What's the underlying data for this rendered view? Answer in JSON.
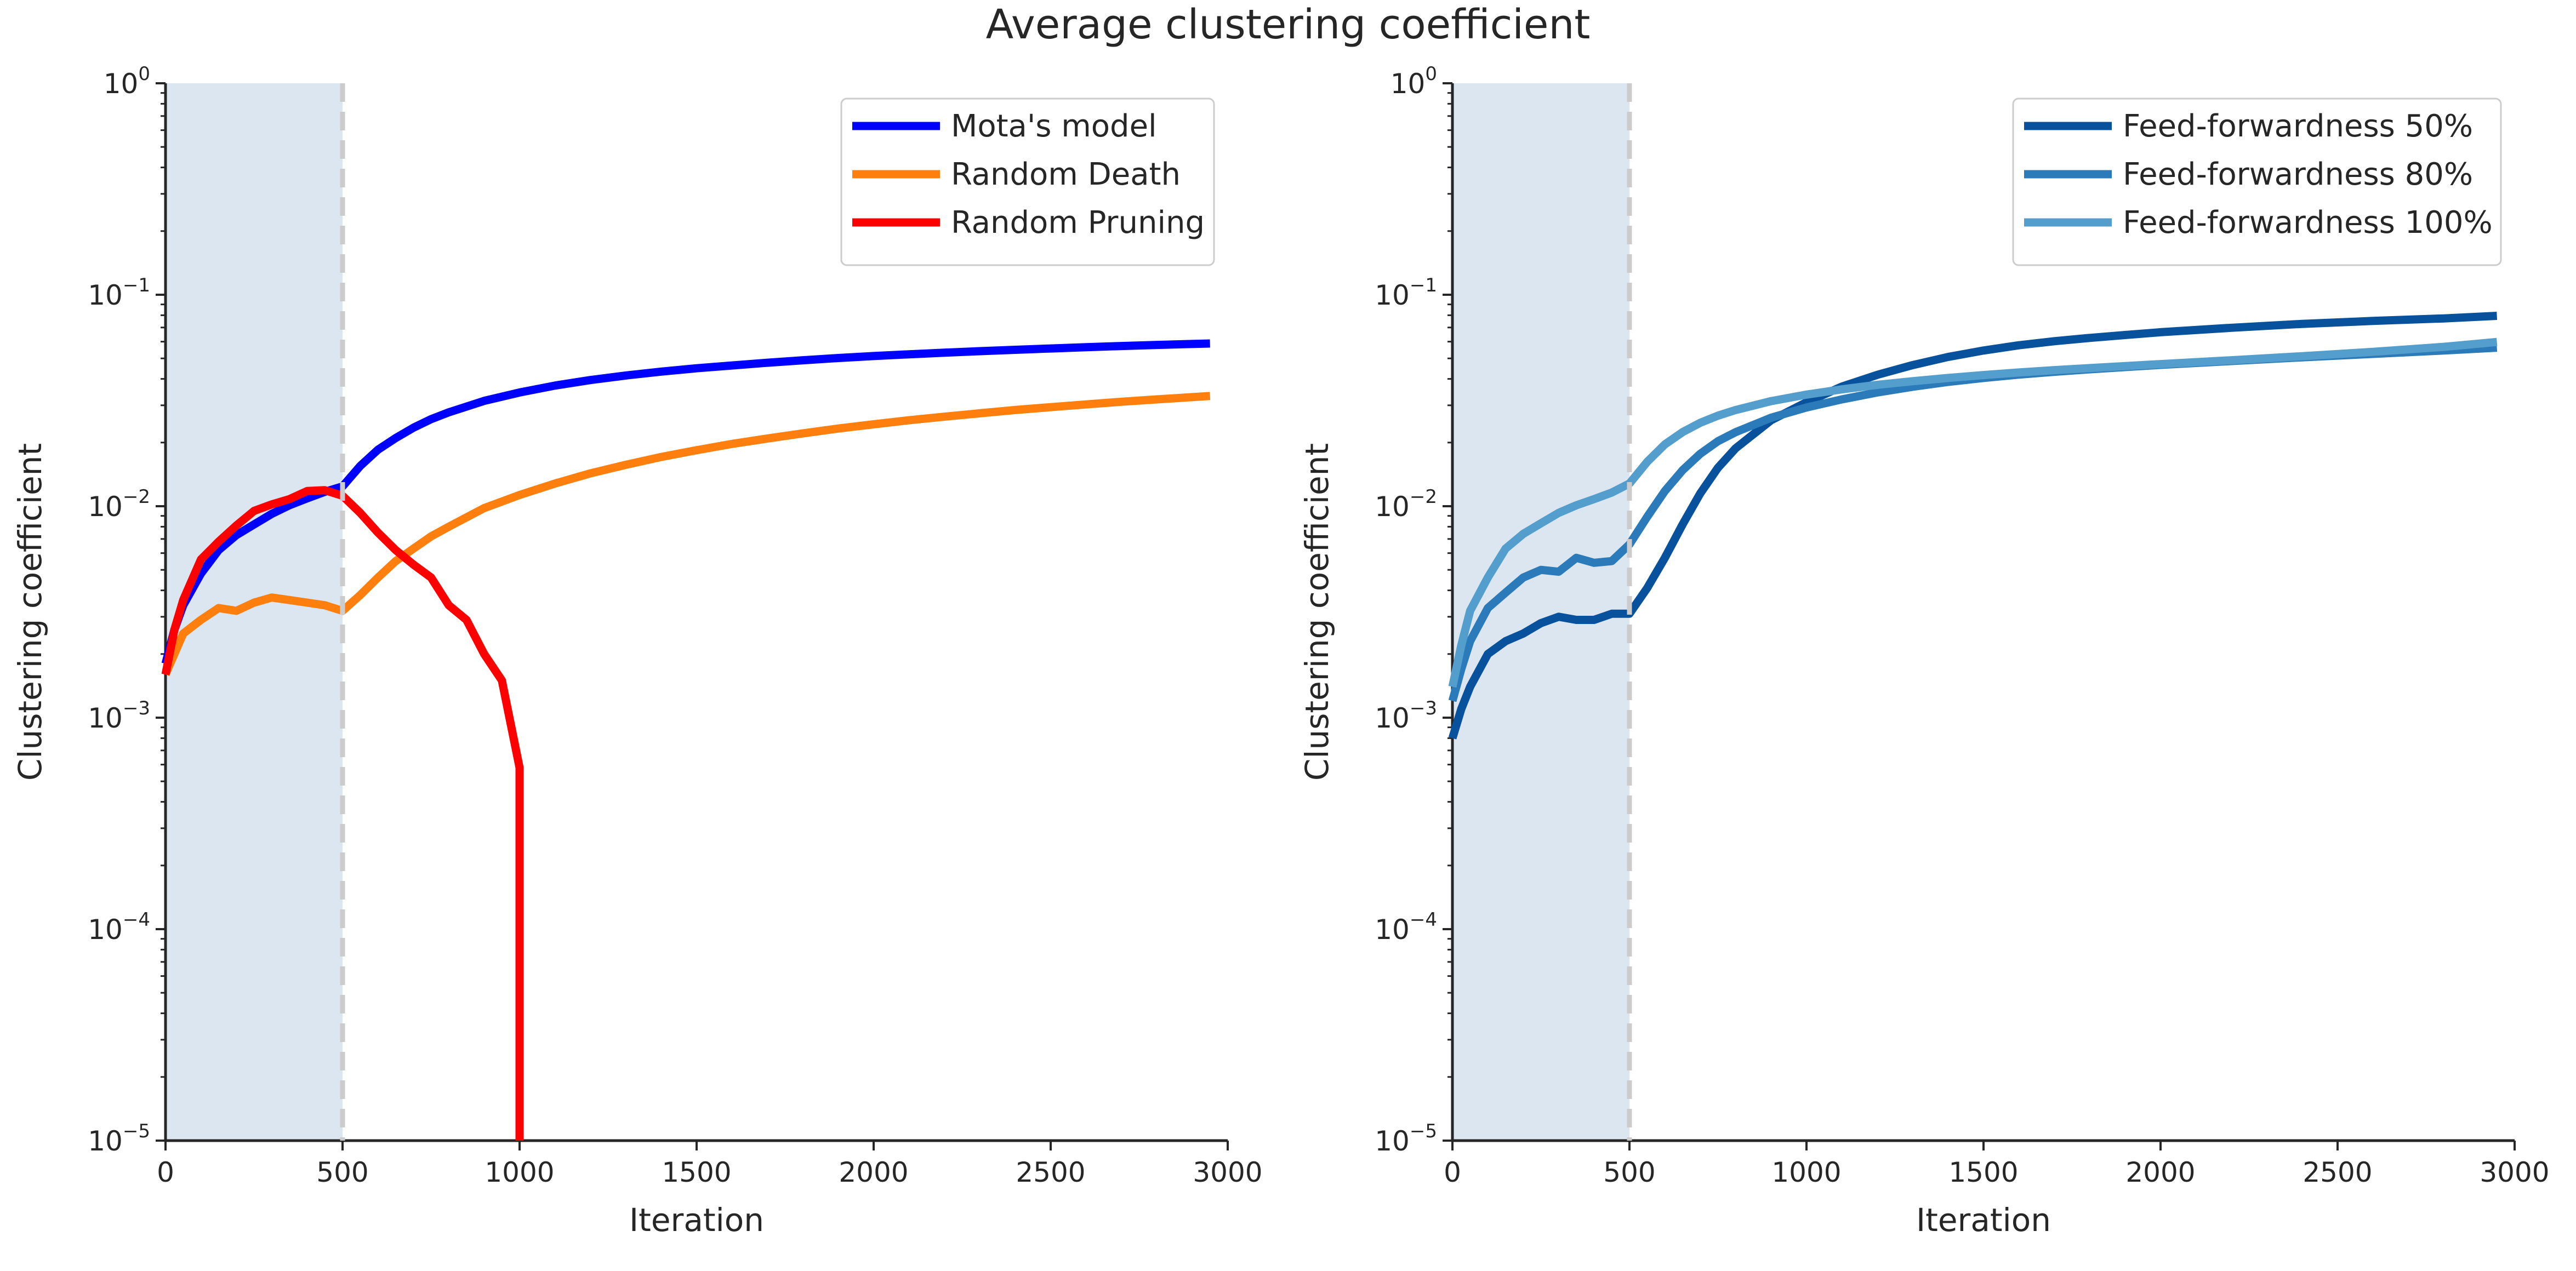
{
  "figure": {
    "title": "Average clustering coefficient"
  },
  "chart_data": [
    {
      "type": "line",
      "yscale": "log",
      "xlabel": "Iteration",
      "ylabel": "Clustering coefficient",
      "xlim": [
        0,
        3000
      ],
      "ylim": [
        1e-05,
        1
      ],
      "xticks": [
        "0",
        "500",
        "1000",
        "1500",
        "2000",
        "2500",
        "3000"
      ],
      "yticks": [
        {
          "base": "10",
          "exp": "0"
        },
        {
          "base": "10",
          "exp": "−1"
        },
        {
          "base": "10",
          "exp": "−2"
        },
        {
          "base": "10",
          "exp": "−3"
        },
        {
          "base": "10",
          "exp": "−4"
        },
        {
          "base": "10",
          "exp": "−5"
        }
      ],
      "shaded_region": {
        "x": [
          0,
          500
        ],
        "color": "#dce6f0"
      },
      "vline": {
        "x": 500,
        "color": "#cccccc",
        "style": "dashed"
      },
      "legend_position": "top-right",
      "series": [
        {
          "name": "Mota's model",
          "color": "#0000ff",
          "x": [
            0,
            25,
            50,
            100,
            150,
            200,
            250,
            300,
            350,
            400,
            450,
            500,
            550,
            600,
            650,
            700,
            750,
            800,
            900,
            1000,
            1100,
            1200,
            1300,
            1400,
            1500,
            1600,
            1700,
            1800,
            1900,
            2000,
            2100,
            2200,
            2300,
            2400,
            2500,
            2600,
            2700,
            2800,
            2950
          ],
          "y": [
            0.0018,
            0.0026,
            0.0034,
            0.0048,
            0.0062,
            0.0073,
            0.0082,
            0.0092,
            0.0101,
            0.0109,
            0.0117,
            0.0124,
            0.0155,
            0.0185,
            0.021,
            0.0235,
            0.0258,
            0.0278,
            0.0315,
            0.0345,
            0.0372,
            0.0395,
            0.0415,
            0.0433,
            0.0449,
            0.0463,
            0.0477,
            0.049,
            0.0502,
            0.0513,
            0.0523,
            0.0532,
            0.0541,
            0.0549,
            0.0557,
            0.0565,
            0.0572,
            0.0579,
            0.0588
          ]
        },
        {
          "name": "Random Death",
          "color": "#ff7f0e",
          "x": [
            0,
            50,
            100,
            150,
            200,
            250,
            300,
            350,
            400,
            450,
            500,
            550,
            600,
            650,
            700,
            750,
            800,
            900,
            1000,
            1100,
            1200,
            1300,
            1400,
            1500,
            1600,
            1700,
            1800,
            1900,
            2000,
            2100,
            2200,
            2300,
            2400,
            2500,
            2600,
            2700,
            2800,
            2950
          ],
          "y": [
            0.0016,
            0.0025,
            0.0029,
            0.0033,
            0.0032,
            0.0035,
            0.0037,
            0.0036,
            0.0035,
            0.0034,
            0.0032,
            0.0038,
            0.0046,
            0.0055,
            0.0063,
            0.0072,
            0.008,
            0.0098,
            0.0113,
            0.0128,
            0.0143,
            0.0157,
            0.0171,
            0.0184,
            0.0197,
            0.0209,
            0.0221,
            0.0233,
            0.0244,
            0.0255,
            0.0265,
            0.0275,
            0.0285,
            0.0294,
            0.0303,
            0.0312,
            0.032,
            0.0332
          ]
        },
        {
          "name": "Random Pruning",
          "color": "#ff0000",
          "x": [
            0,
            25,
            50,
            100,
            150,
            200,
            250,
            300,
            350,
            400,
            450,
            500,
            550,
            600,
            650,
            700,
            750,
            800,
            850,
            900,
            950,
            1000,
            1000
          ],
          "y": [
            0.0016,
            0.0026,
            0.0036,
            0.0056,
            0.0068,
            0.0081,
            0.0095,
            0.0102,
            0.0108,
            0.0118,
            0.0119,
            0.0112,
            0.0093,
            0.0075,
            0.0062,
            0.0053,
            0.0046,
            0.0034,
            0.0029,
            0.002,
            0.0015,
            0.00058,
            1e-05
          ]
        }
      ]
    },
    {
      "type": "line",
      "yscale": "log",
      "xlabel": "Iteration",
      "ylabel": "Clustering coefficient",
      "xlim": [
        0,
        3000
      ],
      "ylim": [
        1e-05,
        1
      ],
      "xticks": [
        "0",
        "500",
        "1000",
        "1500",
        "2000",
        "2500",
        "3000"
      ],
      "yticks": [
        {
          "base": "10",
          "exp": "0"
        },
        {
          "base": "10",
          "exp": "−1"
        },
        {
          "base": "10",
          "exp": "−2"
        },
        {
          "base": "10",
          "exp": "−3"
        },
        {
          "base": "10",
          "exp": "−4"
        },
        {
          "base": "10",
          "exp": "−5"
        }
      ],
      "shaded_region": {
        "x": [
          0,
          500
        ],
        "color": "#dce6f0"
      },
      "vline": {
        "x": 500,
        "color": "#cccccc",
        "style": "dashed"
      },
      "legend_position": "top-right",
      "series": [
        {
          "name": "Feed-forwardness 50%",
          "color": "#08519c",
          "x": [
            0,
            25,
            50,
            100,
            150,
            200,
            250,
            300,
            350,
            400,
            450,
            500,
            550,
            600,
            650,
            700,
            750,
            800,
            900,
            1000,
            1100,
            1200,
            1300,
            1400,
            1500,
            1600,
            1700,
            1800,
            1900,
            2000,
            2200,
            2400,
            2600,
            2800,
            2950
          ],
          "y": [
            0.0008,
            0.0011,
            0.0014,
            0.002,
            0.0023,
            0.0025,
            0.0028,
            0.003,
            0.0029,
            0.0029,
            0.0031,
            0.0031,
            0.0041,
            0.0057,
            0.0082,
            0.0115,
            0.0152,
            0.0188,
            0.0255,
            0.031,
            0.0368,
            0.0418,
            0.0465,
            0.0508,
            0.0545,
            0.0577,
            0.0603,
            0.0625,
            0.0645,
            0.0665,
            0.0698,
            0.0728,
            0.0752,
            0.0773,
            0.0795
          ]
        },
        {
          "name": "Feed-forwardness 80%",
          "color": "#2b7bba",
          "x": [
            0,
            25,
            50,
            100,
            150,
            200,
            250,
            300,
            350,
            400,
            450,
            500,
            550,
            600,
            650,
            700,
            750,
            800,
            900,
            1000,
            1100,
            1200,
            1300,
            1400,
            1500,
            1600,
            1700,
            1800,
            1900,
            2000,
            2200,
            2400,
            2600,
            2800,
            2950
          ],
          "y": [
            0.0012,
            0.0017,
            0.0023,
            0.0033,
            0.0039,
            0.0046,
            0.005,
            0.0049,
            0.0057,
            0.0054,
            0.0055,
            0.0066,
            0.0089,
            0.0118,
            0.0148,
            0.0177,
            0.0203,
            0.0224,
            0.0262,
            0.0293,
            0.032,
            0.0345,
            0.0367,
            0.0387,
            0.0404,
            0.0419,
            0.0432,
            0.0444,
            0.0455,
            0.0466,
            0.0486,
            0.0506,
            0.0525,
            0.0545,
            0.0562
          ]
        },
        {
          "name": "Feed-forwardness 100%",
          "color": "#539ecd",
          "x": [
            0,
            25,
            50,
            100,
            150,
            200,
            250,
            300,
            350,
            400,
            450,
            500,
            550,
            600,
            650,
            700,
            750,
            800,
            900,
            1000,
            1100,
            1200,
            1300,
            1400,
            1500,
            1600,
            1700,
            1800,
            1900,
            2000,
            2200,
            2400,
            2600,
            2800,
            2950
          ],
          "y": [
            0.0014,
            0.0022,
            0.0032,
            0.0046,
            0.0063,
            0.0074,
            0.0083,
            0.0093,
            0.0101,
            0.0108,
            0.0116,
            0.0128,
            0.0162,
            0.0196,
            0.0224,
            0.0248,
            0.0268,
            0.0285,
            0.0314,
            0.0337,
            0.0357,
            0.0375,
            0.039,
            0.0404,
            0.0417,
            0.0429,
            0.044,
            0.045,
            0.046,
            0.047,
            0.049,
            0.0512,
            0.0537,
            0.0567,
            0.0598
          ]
        }
      ]
    }
  ]
}
